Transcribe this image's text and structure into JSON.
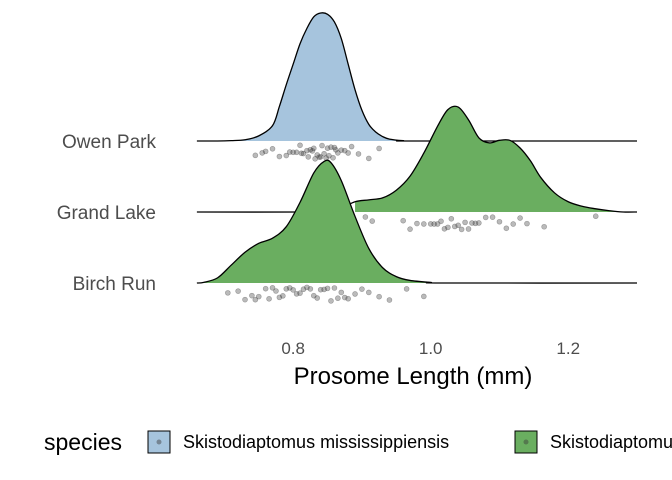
{
  "chart_data": {
    "type": "ridgeline",
    "xlabel": "Prosome Length (mm)",
    "xlim": [
      0.65,
      1.3
    ],
    "xticks": [
      0.8,
      1.0,
      1.2
    ],
    "grid": false,
    "legend_position": "bottom",
    "legend": {
      "title": "species",
      "entries": [
        {
          "label": "Skistodiaptomus mississippiensis",
          "color": "#a6c4dd"
        },
        {
          "label": "Skistodiaptomus pallidus",
          "color": "#6aae60"
        }
      ]
    },
    "categories": [
      "Owen Park",
      "Grand Lake",
      "Birch Run"
    ],
    "series": [
      {
        "category": "Owen Park",
        "species_index": 0,
        "fill_range": [
          0.66,
          0.955
        ],
        "density": [
          [
            0.66,
            0.0
          ],
          [
            0.69,
            0.0
          ],
          [
            0.71,
            0.003
          ],
          [
            0.73,
            0.01
          ],
          [
            0.75,
            0.04
          ],
          [
            0.77,
            0.12
          ],
          [
            0.78,
            0.27
          ],
          [
            0.79,
            0.44
          ],
          [
            0.8,
            0.6
          ],
          [
            0.81,
            0.76
          ],
          [
            0.82,
            0.88
          ],
          [
            0.83,
            0.97
          ],
          [
            0.84,
            1.0
          ],
          [
            0.85,
            0.99
          ],
          [
            0.86,
            0.93
          ],
          [
            0.87,
            0.8
          ],
          [
            0.88,
            0.6
          ],
          [
            0.89,
            0.4
          ],
          [
            0.9,
            0.24
          ],
          [
            0.91,
            0.13
          ],
          [
            0.92,
            0.07
          ],
          [
            0.93,
            0.035
          ],
          [
            0.94,
            0.015
          ],
          [
            0.96,
            0.003
          ],
          [
            0.98,
            0.0
          ],
          [
            1.3,
            0.0
          ]
        ],
        "points": [
          0.745,
          0.755,
          0.76,
          0.77,
          0.78,
          0.79,
          0.795,
          0.8,
          0.805,
          0.81,
          0.812,
          0.815,
          0.82,
          0.822,
          0.825,
          0.828,
          0.83,
          0.832,
          0.835,
          0.838,
          0.84,
          0.842,
          0.845,
          0.848,
          0.85,
          0.852,
          0.855,
          0.858,
          0.86,
          0.862,
          0.865,
          0.87,
          0.875,
          0.88,
          0.885,
          0.895,
          0.91,
          0.925
        ]
      },
      {
        "category": "Grand Lake",
        "species_index": 1,
        "fill_range": [
          0.89,
          1.28
        ],
        "density": [
          [
            0.66,
            0.0
          ],
          [
            0.82,
            0.0
          ],
          [
            0.85,
            0.005
          ],
          [
            0.87,
            0.03
          ],
          [
            0.89,
            0.08
          ],
          [
            0.91,
            0.095
          ],
          [
            0.93,
            0.11
          ],
          [
            0.95,
            0.17
          ],
          [
            0.97,
            0.28
          ],
          [
            0.99,
            0.46
          ],
          [
            1.01,
            0.67
          ],
          [
            1.025,
            0.8
          ],
          [
            1.04,
            0.82
          ],
          [
            1.055,
            0.72
          ],
          [
            1.07,
            0.58
          ],
          [
            1.085,
            0.54
          ],
          [
            1.1,
            0.56
          ],
          [
            1.115,
            0.56
          ],
          [
            1.13,
            0.5
          ],
          [
            1.145,
            0.4
          ],
          [
            1.16,
            0.27
          ],
          [
            1.18,
            0.15
          ],
          [
            1.2,
            0.08
          ],
          [
            1.22,
            0.045
          ],
          [
            1.24,
            0.025
          ],
          [
            1.26,
            0.01
          ],
          [
            1.28,
            0.0
          ],
          [
            1.3,
            0.0
          ]
        ],
        "points": [
          0.905,
          0.915,
          0.96,
          0.97,
          0.98,
          0.99,
          1.0,
          1.005,
          1.01,
          1.015,
          1.02,
          1.025,
          1.03,
          1.035,
          1.04,
          1.045,
          1.05,
          1.055,
          1.06,
          1.065,
          1.07,
          1.08,
          1.09,
          1.1,
          1.11,
          1.12,
          1.13,
          1.14,
          1.165,
          1.24
        ]
      },
      {
        "category": "Birch Run",
        "species_index": 1,
        "fill_range": [
          0.665,
          1.0
        ],
        "density": [
          [
            0.66,
            0.0
          ],
          [
            0.67,
            0.005
          ],
          [
            0.69,
            0.04
          ],
          [
            0.71,
            0.14
          ],
          [
            0.73,
            0.24
          ],
          [
            0.75,
            0.31
          ],
          [
            0.77,
            0.35
          ],
          [
            0.79,
            0.44
          ],
          [
            0.81,
            0.63
          ],
          [
            0.83,
            0.86
          ],
          [
            0.845,
            0.95
          ],
          [
            0.855,
            0.94
          ],
          [
            0.87,
            0.8
          ],
          [
            0.89,
            0.52
          ],
          [
            0.91,
            0.27
          ],
          [
            0.93,
            0.12
          ],
          [
            0.95,
            0.05
          ],
          [
            0.97,
            0.02
          ],
          [
            1.0,
            0.005
          ],
          [
            1.02,
            0.0
          ],
          [
            1.3,
            0.0
          ]
        ],
        "points": [
          0.705,
          0.72,
          0.73,
          0.74,
          0.745,
          0.75,
          0.76,
          0.765,
          0.77,
          0.775,
          0.78,
          0.785,
          0.79,
          0.795,
          0.8,
          0.805,
          0.81,
          0.815,
          0.82,
          0.825,
          0.83,
          0.835,
          0.84,
          0.845,
          0.85,
          0.855,
          0.86,
          0.865,
          0.87,
          0.875,
          0.88,
          0.89,
          0.9,
          0.91,
          0.925,
          0.94,
          0.965,
          0.99
        ]
      }
    ]
  }
}
